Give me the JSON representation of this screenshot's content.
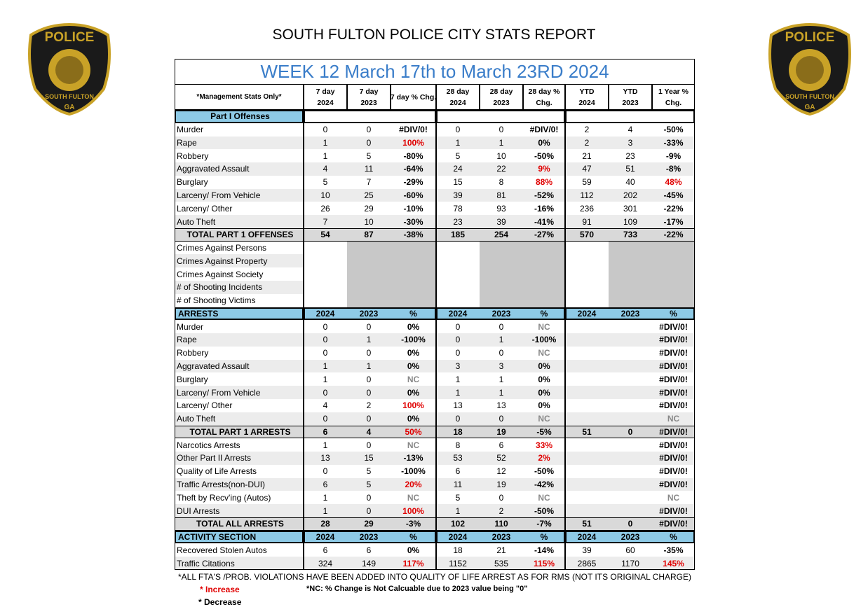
{
  "header": {
    "title": "SOUTH FULTON POLICE CITY STATS REPORT"
  },
  "logo": {
    "lines": [
      "POLICE",
      "SOUTH FULTON",
      "GA"
    ]
  },
  "table": {
    "title": "WEEK 12 March 17th to March 23RD 2024",
    "corner": "*Management Stats Only*",
    "columns": [
      [
        "7 day",
        "2024"
      ],
      [
        "7 day",
        "2023"
      ],
      [
        "7 day % Chg."
      ],
      [
        "28 day",
        "2024"
      ],
      [
        "28 day",
        "2023"
      ],
      [
        "28 day %",
        "Chg."
      ],
      [
        "YTD",
        "2024"
      ],
      [
        "YTD",
        "2023"
      ],
      [
        "1 Year %",
        "Chg."
      ]
    ],
    "sections": [
      {
        "name": "Part I Offenses",
        "rows": [
          {
            "label": "Murder",
            "values": [
              0,
              0,
              "#DIV/0!",
              0,
              0,
              "#DIV/0!",
              2,
              4,
              "-50%"
            ]
          },
          {
            "label": "Rape",
            "values": [
              1,
              0,
              "100%",
              1,
              1,
              "0%",
              2,
              3,
              "-33%"
            ]
          },
          {
            "label": "Robbery",
            "values": [
              1,
              5,
              "-80%",
              5,
              10,
              "-50%",
              21,
              23,
              "-9%"
            ]
          },
          {
            "label": "Aggravated Assault",
            "values": [
              4,
              11,
              "-64%",
              24,
              22,
              "9%",
              47,
              51,
              "-8%"
            ]
          },
          {
            "label": "Burglary",
            "values": [
              5,
              7,
              "-29%",
              15,
              8,
              "88%",
              59,
              40,
              "48%"
            ]
          },
          {
            "label": "Larceny/ From Vehicle",
            "values": [
              10,
              25,
              "-60%",
              39,
              81,
              "-52%",
              112,
              202,
              "-45%"
            ]
          },
          {
            "label": "Larceny/ Other",
            "values": [
              26,
              29,
              "-10%",
              78,
              93,
              "-16%",
              236,
              301,
              "-22%"
            ]
          },
          {
            "label": "Auto Theft",
            "values": [
              7,
              10,
              "-30%",
              23,
              39,
              "-41%",
              91,
              109,
              "-17%"
            ]
          },
          {
            "label": "TOTAL PART 1 OFFENSES",
            "values": [
              54,
              87,
              "-38%",
              185,
              254,
              "-27%",
              570,
              733,
              "-22%"
            ]
          },
          {
            "label": "Crimes Against Persons"
          },
          {
            "label": "Crimes Against Property"
          },
          {
            "label": "Crimes Against Society"
          },
          {
            "label": "# of Shooting Incidents"
          },
          {
            "label": "# of Shooting Victims"
          }
        ]
      },
      {
        "name": "ARRESTS",
        "columns": [
          "2024",
          "2023",
          "%",
          "2024",
          "2023",
          "%",
          "2024",
          "2023",
          "%"
        ],
        "rows": [
          {
            "label": "Murder",
            "values": [
              0,
              0,
              "0%",
              0,
              0,
              "NC",
              null,
              null,
              "#DIV/0!"
            ]
          },
          {
            "label": "Rape",
            "values": [
              0,
              1,
              "-100%",
              0,
              1,
              "-100%",
              null,
              null,
              "#DIV/0!"
            ]
          },
          {
            "label": "Robbery",
            "values": [
              0,
              0,
              "0%",
              0,
              0,
              "NC",
              null,
              null,
              "#DIV/0!"
            ]
          },
          {
            "label": "Aggravated Assault",
            "values": [
              1,
              1,
              "0%",
              3,
              3,
              "0%",
              null,
              null,
              "#DIV/0!"
            ]
          },
          {
            "label": "Burglary",
            "values": [
              1,
              0,
              "NC",
              1,
              1,
              "0%",
              null,
              null,
              "#DIV/0!"
            ]
          },
          {
            "label": "Larceny/ From Vehicle",
            "values": [
              0,
              0,
              "0%",
              1,
              1,
              "0%",
              null,
              null,
              "#DIV/0!"
            ]
          },
          {
            "label": "Larceny/ Other",
            "values": [
              4,
              2,
              "100%",
              13,
              13,
              "0%",
              null,
              null,
              "#DIV/0!"
            ]
          },
          {
            "label": "Auto Theft",
            "values": [
              0,
              0,
              "0%",
              0,
              0,
              "NC",
              null,
              null,
              "NC"
            ]
          },
          {
            "label": "TOTAL PART 1 ARRESTS",
            "values": [
              6,
              4,
              "50%",
              18,
              19,
              "-5%",
              51,
              0,
              "#DIV/0!"
            ]
          },
          {
            "label": "Narcotics Arrests",
            "values": [
              1,
              0,
              "NC",
              8,
              6,
              "33%",
              null,
              null,
              "#DIV/0!"
            ]
          },
          {
            "label": "Other Part II Arrests",
            "values": [
              13,
              15,
              "-13%",
              53,
              52,
              "2%",
              null,
              null,
              "#DIV/0!"
            ]
          },
          {
            "label": "Quality of Life Arrests",
            "values": [
              0,
              5,
              "-100%",
              6,
              12,
              "-50%",
              null,
              null,
              "#DIV/0!"
            ]
          },
          {
            "label": "Traffic Arrests(non-DUI)",
            "values": [
              6,
              5,
              "20%",
              11,
              19,
              "-42%",
              null,
              null,
              "#DIV/0!"
            ]
          },
          {
            "label": "Theft by Recv'ing (Autos)",
            "values": [
              1,
              0,
              "NC",
              5,
              0,
              "NC",
              null,
              null,
              "NC"
            ]
          },
          {
            "label": "DUI Arrests",
            "values": [
              1,
              0,
              "100%",
              1,
              2,
              "-50%",
              null,
              null,
              "#DIV/0!"
            ]
          },
          {
            "label": "TOTAL ALL ARRESTS",
            "values": [
              28,
              29,
              "-3%",
              102,
              110,
              "-7%",
              51,
              0,
              "#DIV/0!"
            ]
          }
        ]
      },
      {
        "name": "ACTIVITY SECTION",
        "columns": [
          "2024",
          "2023",
          "%",
          "2024",
          "2023",
          "%",
          "2024",
          "2023",
          "%"
        ],
        "rows": [
          {
            "label": "Recovered Stolen Autos",
            "values": [
              6,
              6,
              "0%",
              18,
              21,
              "-14%",
              39,
              60,
              "-35%"
            ]
          },
          {
            "label": "Traffic Citations",
            "values": [
              324,
              149,
              "117%",
              1152,
              535,
              "115%",
              2865,
              1170,
              "145%"
            ]
          }
        ]
      }
    ]
  },
  "footer": {
    "note": "*ALL FTA'S /PROB. VIOLATIONS HAVE BEEN ADDED INTO QUALITY OF LIFE ARREST AS FOR RMS (NOT ITS ORIGINAL CHARGE)",
    "increase": "* Increase",
    "nc": "*NC: % Change is Not Calcuable due to 2023 value being \"0\"",
    "decrease": "* Decrease"
  }
}
